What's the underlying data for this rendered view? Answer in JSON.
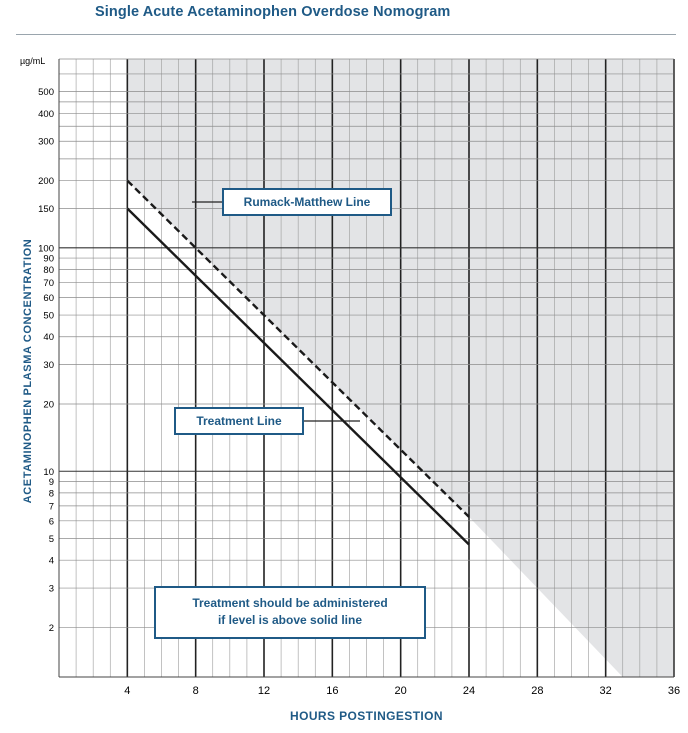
{
  "chart_data": {
    "type": "line",
    "title": "Single Acute Acetaminophen Overdose Nomogram",
    "xlabel": "HOURS POSTINGESTION",
    "ylabel": "ACETAMINOPHEN PLASMA CONCENTRATION",
    "y_unit": "µg/mL",
    "y_scale": "log",
    "xlim": [
      0,
      36
    ],
    "ylim": [
      1.2,
      700
    ],
    "x_ticks": [
      "4",
      "8",
      "12",
      "16",
      "20",
      "24",
      "28",
      "32",
      "36"
    ],
    "y_ticks": [
      "2",
      "3",
      "4",
      "5",
      "6",
      "7",
      "8",
      "9",
      "10",
      "20",
      "30",
      "40",
      "50",
      "60",
      "70",
      "80",
      "90",
      "100",
      "150",
      "200",
      "300",
      "400",
      "500"
    ],
    "grid": true,
    "series": [
      {
        "name": "Rumack-Matthew Line",
        "style": "dashed",
        "x": [
          4,
          24
        ],
        "y": [
          200,
          6.25
        ]
      },
      {
        "name": "Treatment Line",
        "style": "solid",
        "x": [
          4,
          24
        ],
        "y": [
          150,
          4.7
        ]
      }
    ],
    "shaded_region": {
      "description_visible": false,
      "x": [
        4,
        24,
        33,
        36
      ],
      "y_bottom": [
        200,
        6.25,
        1.2,
        1.2
      ],
      "color": "#e3e4e6"
    },
    "annotations": [
      {
        "text": "Treatment should be administered",
        "text2": "if level is above solid line"
      }
    ]
  },
  "colors": {
    "accent": "#1f5a86",
    "shade": "#e3e4e6",
    "grid": "#7c7c7c",
    "line": "#1a1a1a"
  }
}
